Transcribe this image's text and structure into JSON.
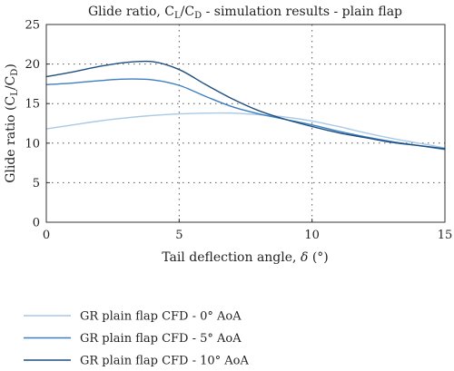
{
  "chart_data": {
    "type": "line",
    "title": {
      "prefix": "Glide ratio, C",
      "sub1": "L",
      "mid": "/C",
      "sub2": "D",
      "suffix": " - simulation results - plain flap"
    },
    "xlabel": {
      "text": "Tail deflection angle, ",
      "symbol": "δ",
      "unit": " (°)"
    },
    "ylabel": {
      "prefix": "Glide ratio (C",
      "sub1": "L",
      "mid": "/C",
      "sub2": "D",
      "suffix": ")"
    },
    "xlim": [
      0,
      15
    ],
    "ylim": [
      0,
      25
    ],
    "xticks": [
      0,
      5,
      10,
      15
    ],
    "yticks": [
      0,
      5,
      10,
      15,
      20,
      25
    ],
    "grid": true,
    "legend_position": "below",
    "series": [
      {
        "name": "GR plain flap CFD - 0° AoA",
        "color": "#a9c9e6",
        "x": [
          0,
          1,
          2,
          3,
          4,
          5,
          6,
          7,
          8,
          9,
          10,
          11,
          12,
          13,
          14,
          15
        ],
        "y": [
          11.8,
          12.3,
          12.8,
          13.2,
          13.5,
          13.7,
          13.8,
          13.8,
          13.6,
          13.3,
          12.8,
          12.1,
          11.3,
          10.6,
          10.0,
          9.4
        ]
      },
      {
        "name": "GR plain flap CFD - 5° AoA",
        "color": "#3d7fbf",
        "x": [
          0,
          1,
          2,
          3,
          4,
          5,
          6,
          7,
          8,
          9,
          10,
          11,
          12,
          13,
          14,
          15
        ],
        "y": [
          17.4,
          17.6,
          17.9,
          18.1,
          18.0,
          17.3,
          15.9,
          14.6,
          13.7,
          13.0,
          12.3,
          11.5,
          10.8,
          10.2,
          9.7,
          9.2
        ]
      },
      {
        "name": "GR plain flap CFD - 10° AoA",
        "color": "#1f4f80",
        "x": [
          0,
          1,
          2,
          3,
          4,
          5,
          6,
          7,
          8,
          9,
          10,
          11,
          12,
          13,
          14,
          15
        ],
        "y": [
          18.4,
          19.0,
          19.7,
          20.2,
          20.3,
          19.3,
          17.4,
          15.6,
          14.1,
          13.0,
          12.1,
          11.3,
          10.7,
          10.1,
          9.7,
          9.3
        ]
      }
    ]
  }
}
